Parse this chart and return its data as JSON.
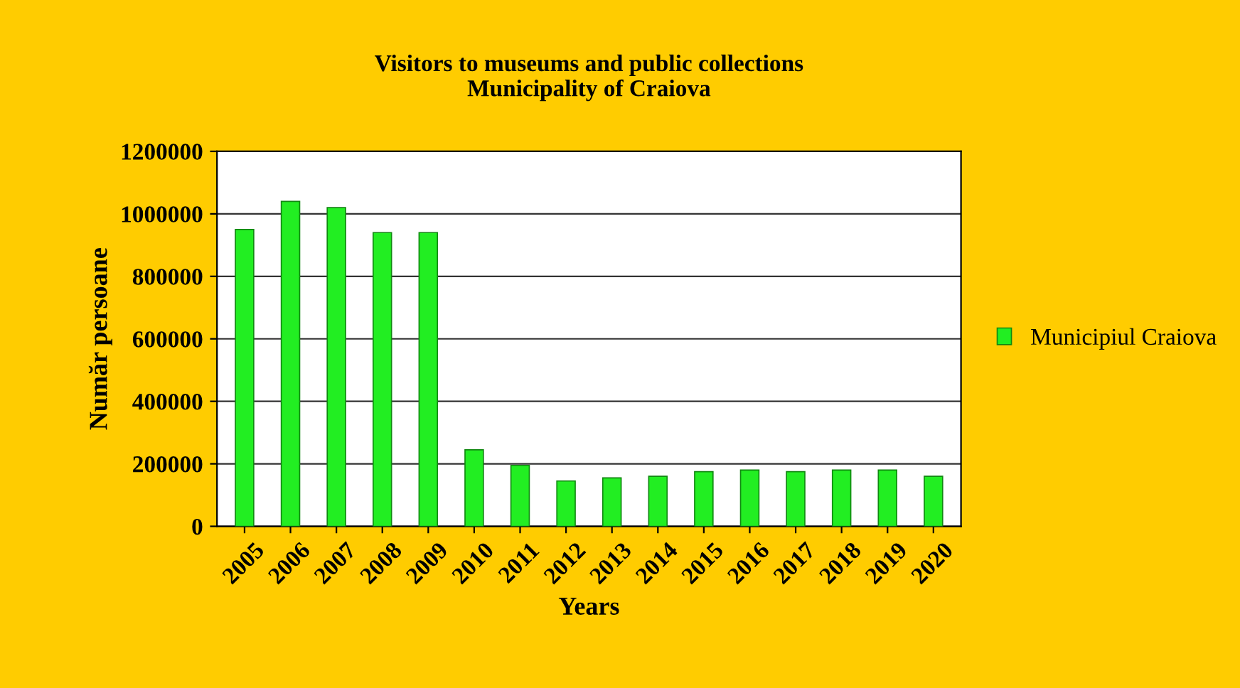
{
  "chart_data": {
    "type": "bar",
    "title": "Visitors to museums and public collections\nMunicipality of Craiova",
    "xlabel": "Years",
    "ylabel": "Număr persoane",
    "categories": [
      "2005",
      "2006",
      "2007",
      "2008",
      "2009",
      "2010",
      "2011",
      "2012",
      "2013",
      "2014",
      "2015",
      "2016",
      "2017",
      "2018",
      "2019",
      "2020"
    ],
    "series": [
      {
        "name": "Municipiul Craiova",
        "color": "#22ee22",
        "values": [
          950000,
          1040000,
          1020000,
          940000,
          940000,
          245000,
          195000,
          145000,
          155000,
          160000,
          175000,
          180000,
          175000,
          180000,
          180000,
          160000
        ]
      }
    ],
    "ylim": [
      0,
      1200000
    ],
    "yticks": [
      0,
      200000,
      400000,
      600000,
      800000,
      1000000,
      1200000
    ],
    "grid": "y",
    "legend": "right"
  }
}
